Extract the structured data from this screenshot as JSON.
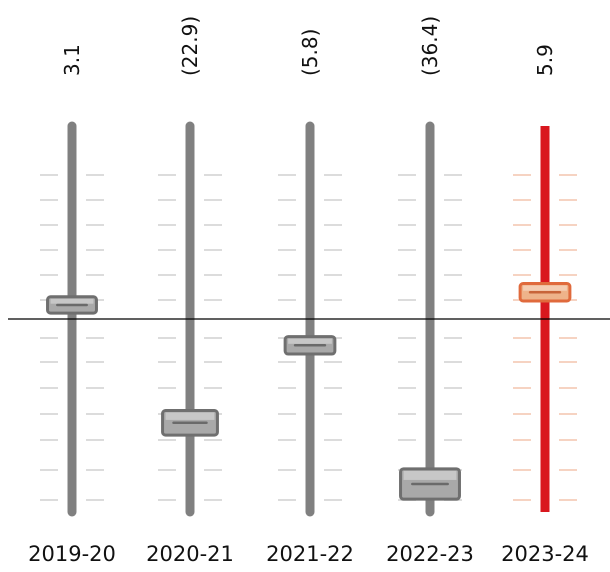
{
  "chart_data": {
    "type": "bar",
    "categories": [
      "2019-20",
      "2020-21",
      "2021-22",
      "2022-23",
      "2023-24"
    ],
    "values": [
      3.1,
      -22.9,
      -5.8,
      -36.4,
      5.9
    ],
    "value_labels": [
      "3.1",
      "(22.9)",
      "(5.8)",
      "(36.4)",
      "5.9"
    ],
    "title": "",
    "xlabel": "",
    "ylabel": "",
    "ylim": [
      -40,
      40
    ],
    "grid": false,
    "legend": "none",
    "style": "mixer-fader sliders",
    "colors": {
      "track": "#808080",
      "highlight_track": "#d9171e",
      "knob": "#a9a9a9",
      "knob_border": "#6f6f6f",
      "highlight_knob": "#eeb38a",
      "highlight_knob_border": "#e06a3c",
      "tick": "#dcdcdc",
      "highlight_tick": "#f6d3c2",
      "baseline": "#000000",
      "text": "#111111"
    },
    "highlight_index": 4
  }
}
